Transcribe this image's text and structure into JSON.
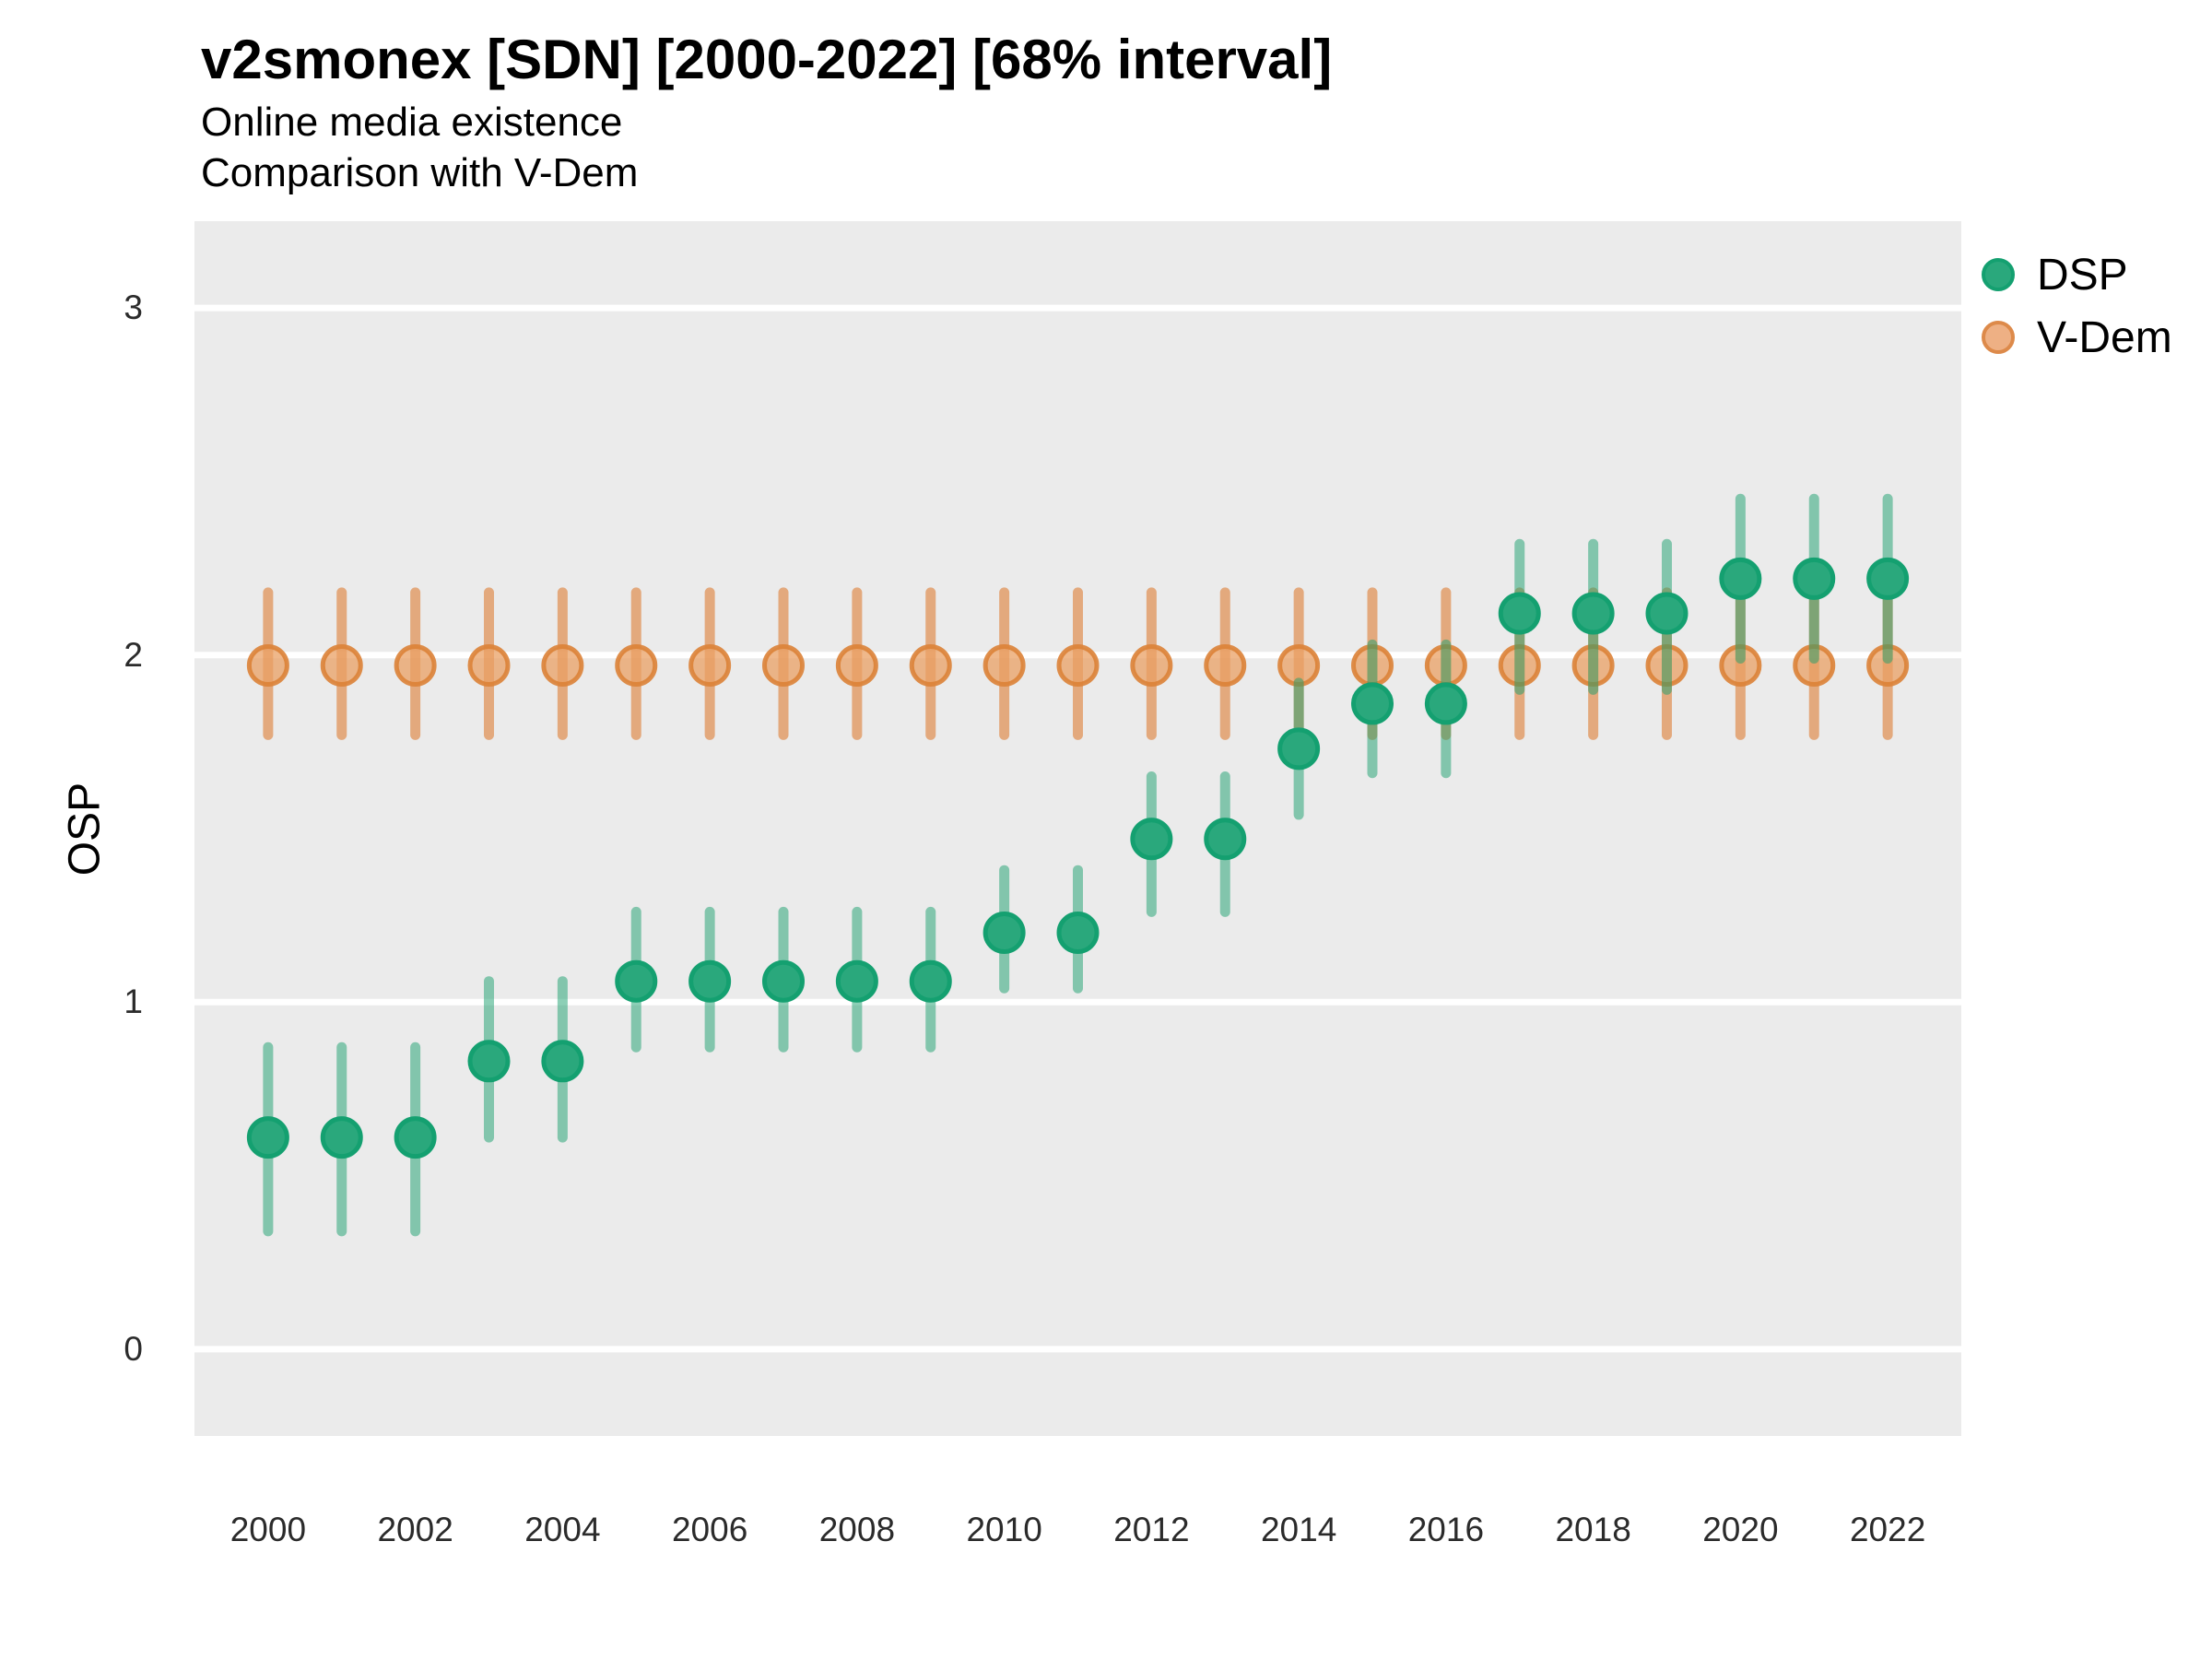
{
  "title": "v2smonex [SDN] [2000-2022] [68% interval]",
  "subtitle1": "Online media existence",
  "subtitle2": "Comparison with V-Dem",
  "y_axis_label": "OSP",
  "legend": [
    {
      "label": "DSP",
      "fill": "#2aa87c",
      "border": "#14a070"
    },
    {
      "label": "V-Dem",
      "fill": "#eeb084",
      "border": "#dd8a4a"
    }
  ],
  "axes": {
    "y_ticks": [
      0,
      1,
      2,
      3
    ],
    "x_ticks": [
      2000,
      2002,
      2004,
      2006,
      2008,
      2010,
      2012,
      2014,
      2016,
      2018,
      2020,
      2022
    ],
    "ylim": [
      -0.25,
      3.25
    ],
    "xlim": [
      1999,
      2023
    ],
    "panel_background": "#ebebeb",
    "gridline_color": "#ffffff"
  },
  "chart_data": {
    "type": "pointrange",
    "title": "v2smonex [SDN] [2000-2022] [68% interval]",
    "interval": "68%",
    "xlabel": "",
    "ylabel": "OSP",
    "legend_position": "right",
    "grid": "horizontal-only",
    "x": [
      2000,
      2001,
      2002,
      2003,
      2004,
      2005,
      2006,
      2007,
      2008,
      2009,
      2010,
      2011,
      2012,
      2013,
      2014,
      2015,
      2016,
      2017,
      2018,
      2019,
      2020,
      2021,
      2022
    ],
    "series": [
      {
        "name": "DSP",
        "values": [
          0.61,
          0.61,
          0.61,
          0.83,
          0.83,
          1.06,
          1.06,
          1.06,
          1.06,
          1.06,
          1.2,
          1.2,
          1.47,
          1.47,
          1.73,
          1.86,
          1.86,
          2.12,
          2.12,
          2.12,
          2.22,
          2.22,
          2.22
        ],
        "lower": [
          0.34,
          0.34,
          0.34,
          0.61,
          0.61,
          0.87,
          0.87,
          0.87,
          0.87,
          0.87,
          1.04,
          1.04,
          1.26,
          1.26,
          1.54,
          1.66,
          1.66,
          1.9,
          1.9,
          1.9,
          1.99,
          1.99,
          1.99
        ],
        "upper": [
          0.87,
          0.87,
          0.87,
          1.06,
          1.06,
          1.26,
          1.26,
          1.26,
          1.26,
          1.26,
          1.38,
          1.38,
          1.65,
          1.65,
          1.92,
          2.03,
          2.03,
          2.32,
          2.32,
          2.32,
          2.45,
          2.45,
          2.45
        ],
        "point_fill": "#2aa87c",
        "point_border": "#14a070",
        "bar_color": "rgba(25,160,110,0.5)"
      },
      {
        "name": "V-Dem",
        "values": [
          1.97,
          1.97,
          1.97,
          1.97,
          1.97,
          1.97,
          1.97,
          1.97,
          1.97,
          1.97,
          1.97,
          1.97,
          1.97,
          1.97,
          1.97,
          1.97,
          1.97,
          1.97,
          1.97,
          1.97,
          1.97,
          1.97,
          1.97
        ],
        "lower": [
          1.77,
          1.77,
          1.77,
          1.77,
          1.77,
          1.77,
          1.77,
          1.77,
          1.77,
          1.77,
          1.77,
          1.77,
          1.77,
          1.77,
          1.77,
          1.77,
          1.77,
          1.77,
          1.77,
          1.77,
          1.77,
          1.77,
          1.77
        ],
        "upper": [
          2.18,
          2.18,
          2.18,
          2.18,
          2.18,
          2.18,
          2.18,
          2.18,
          2.18,
          2.18,
          2.18,
          2.18,
          2.18,
          2.18,
          2.18,
          2.18,
          2.18,
          2.18,
          2.18,
          2.18,
          2.18,
          2.18,
          2.18
        ],
        "point_fill": "rgba(233,160,100,0.75)",
        "point_border": "rgba(219,130,55,0.9)",
        "bar_color": "rgba(221,125,51,0.6)"
      }
    ]
  }
}
